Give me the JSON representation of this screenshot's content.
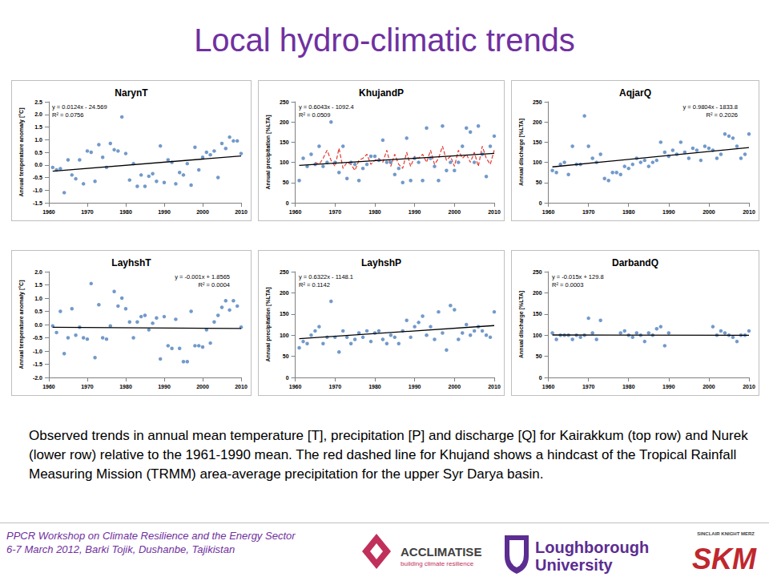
{
  "title": "Local hydro-climatic trends",
  "caption": "Observed trends in annual mean temperature [T], precipitation [P] and discharge [Q] for Kairakkum (top row) and Nurek (lower row) relative to the 1961-1990 mean. The red dashed line for Khujand shows a hindcast of the Tropical Rainfall Measuring Mission (TRMM) area-average precipitation for the upper Syr Darya basin.",
  "footer": [
    "PPCR Workshop on Climate Resilience and the Energy Sector",
    "6-7 March 2012, Barki Tojik, Dushanbe, Tajikistan"
  ],
  "logos": {
    "acclimatise": [
      "ACCLIMATISE",
      "building climate resilience"
    ],
    "loughborough": [
      "Loughborough",
      "University"
    ],
    "skm": [
      "SINCLAIR KNIGHT MERZ",
      "SKM"
    ]
  },
  "chart_data": [
    {
      "type": "scatter",
      "title": "NarynT",
      "y_label": "Annual temperature anomaly [°C]",
      "grid": false,
      "x": [
        1961,
        1962,
        1963,
        1964,
        1965,
        1966,
        1967,
        1968,
        1969,
        1970,
        1971,
        1972,
        1973,
        1974,
        1975,
        1976,
        1977,
        1978,
        1979,
        1980,
        1981,
        1982,
        1983,
        1984,
        1985,
        1986,
        1987,
        1988,
        1989,
        1990,
        1991,
        1992,
        1993,
        1994,
        1995,
        1996,
        1997,
        1998,
        1999,
        2000,
        2001,
        2002,
        2003,
        2004,
        2005,
        2006,
        2007,
        2008,
        2009,
        2010
      ],
      "xlim": [
        1960,
        2010
      ],
      "xticks": [
        1960,
        1970,
        1980,
        1990,
        2000,
        2010
      ],
      "ylim": [
        -1.5,
        2.5
      ],
      "yticks": [
        -1.5,
        {
          "value": -1,
          "label": "-1.0"
        },
        -0.5,
        {
          "value": 0,
          "label": "0.0"
        },
        0.5,
        {
          "value": 1,
          "label": "1.0"
        },
        1.5,
        {
          "value": 2,
          "label": "2.0"
        },
        2.5
      ],
      "annotations": [
        "y = 0.0124x - 24.569",
        "R² = 0.0756"
      ],
      "series": [
        {
          "type": "scatter",
          "color": "#4f81bd",
          "marker": "circle",
          "values": [
            -0.1,
            -0.2,
            -0.15,
            -1.1,
            0.2,
            -0.4,
            -0.55,
            0.2,
            -0.75,
            0.55,
            0.5,
            -0.65,
            0.8,
            0.3,
            -0.1,
            0.85,
            0.6,
            0.55,
            1.9,
            0.45,
            -0.6,
            0.05,
            -0.85,
            -0.4,
            -0.85,
            -0.45,
            -0.35,
            -0.65,
            0.75,
            -0.7,
            0.2,
            0.1,
            -0.75,
            -0.3,
            -0.4,
            0.05,
            -0.8,
            0.7,
            -0.2,
            0.3,
            0.5,
            0.4,
            0.55,
            -0.5,
            0.85,
            0.65,
            1.1,
            0.95,
            0.95,
            0.45
          ]
        },
        {
          "type": "line",
          "color": "#000000",
          "line_style": "solid",
          "x": [
            1961,
            2010
          ],
          "values": [
            -0.253,
            0.355
          ]
        }
      ]
    },
    {
      "type": "scatter",
      "title": "KhujandP",
      "y_label": "Annual precipitation [%LTA]",
      "grid": false,
      "x": [
        1961,
        1962,
        1963,
        1964,
        1965,
        1966,
        1967,
        1968,
        1969,
        1970,
        1971,
        1972,
        1973,
        1974,
        1975,
        1976,
        1977,
        1978,
        1979,
        1980,
        1981,
        1982,
        1983,
        1984,
        1985,
        1986,
        1987,
        1988,
        1989,
        1990,
        1991,
        1992,
        1993,
        1994,
        1995,
        1996,
        1997,
        1998,
        1999,
        2000,
        2001,
        2002,
        2003,
        2004,
        2005,
        2006,
        2007,
        2008,
        2009,
        2010
      ],
      "xlim": [
        1960,
        2010
      ],
      "xticks": [
        1960,
        1970,
        1980,
        1990,
        2000,
        2010
      ],
      "ylim": [
        0,
        250
      ],
      "yticks": [
        0,
        50,
        100,
        150,
        200,
        250
      ],
      "annotations": [
        "y = 0.6043x - 1092.4",
        "R² = 0.0509"
      ],
      "series": [
        {
          "type": "line",
          "color": "#e03c31",
          "line_style": "dashed",
          "x": [
            1965,
            1966,
            1967,
            1968,
            1969,
            1970,
            1971,
            1972,
            1973,
            1974,
            1975,
            1976,
            1977,
            1978,
            1979,
            1980,
            1981,
            1982,
            1983,
            1984,
            1985,
            1986,
            1987,
            1988,
            1989,
            1990,
            1991,
            1992,
            1993,
            1994,
            1995,
            1996,
            1997,
            1998,
            1999,
            2000,
            2001,
            2002,
            2003,
            2004,
            2005,
            2006,
            2007,
            2008,
            2009,
            2010
          ],
          "values": [
            100,
            95,
            110,
            130,
            105,
            90,
            135,
            85,
            100,
            95,
            80,
            105,
            110,
            120,
            95,
            105,
            110,
            100,
            130,
            90,
            120,
            95,
            85,
            125,
            90,
            115,
            110,
            120,
            100,
            130,
            95,
            110,
            140,
            105,
            115,
            90,
            130,
            110,
            120,
            100,
            125,
            90,
            140,
            110,
            95,
            130
          ]
        },
        {
          "type": "scatter",
          "color": "#4f81bd",
          "marker": "circle",
          "values": [
            55,
            110,
            90,
            120,
            95,
            140,
            90,
            100,
            200,
            100,
            75,
            140,
            60,
            100,
            95,
            55,
            85,
            95,
            115,
            115,
            105,
            155,
            100,
            100,
            70,
            85,
            50,
            160,
            55,
            110,
            100,
            55,
            185,
            110,
            90,
            55,
            190,
            80,
            100,
            80,
            100,
            140,
            185,
            175,
            100,
            190,
            120,
            65,
            140,
            165
          ]
        },
        {
          "type": "line",
          "color": "#000000",
          "line_style": "solid",
          "x": [
            1961,
            2010
          ],
          "values": [
            92.6,
            122.2
          ]
        }
      ]
    },
    {
      "type": "scatter",
      "title": "AqjarQ",
      "y_label": "Annual discharge [%LTA]",
      "grid": false,
      "x": [
        1961,
        1962,
        1963,
        1964,
        1965,
        1966,
        1967,
        1968,
        1969,
        1970,
        1971,
        1972,
        1973,
        1974,
        1975,
        1976,
        1977,
        1978,
        1979,
        1980,
        1981,
        1982,
        1983,
        1984,
        1985,
        1986,
        1987,
        1988,
        1989,
        1990,
        1991,
        1992,
        1993,
        1994,
        1995,
        1996,
        1997,
        1998,
        1999,
        2000,
        2001,
        2002,
        2003,
        2004,
        2005,
        2006,
        2007,
        2008,
        2009,
        2010
      ],
      "xlim": [
        1960,
        2010
      ],
      "xticks": [
        1960,
        1970,
        1980,
        1990,
        2000,
        2010
      ],
      "ylim": [
        0,
        250
      ],
      "yticks": [
        0,
        50,
        100,
        150,
        200,
        250
      ],
      "annotations": [
        "y = 0.9804x - 1833.8",
        "R² = 0.2026"
      ],
      "series": [
        {
          "type": "scatter",
          "color": "#4f81bd",
          "marker": "circle",
          "values": [
            80,
            75,
            95,
            100,
            70,
            140,
            95,
            95,
            215,
            140,
            110,
            100,
            120,
            60,
            55,
            75,
            75,
            70,
            90,
            85,
            95,
            110,
            100,
            105,
            90,
            100,
            105,
            150,
            125,
            115,
            130,
            120,
            150,
            125,
            110,
            135,
            130,
            105,
            140,
            135,
            130,
            110,
            120,
            170,
            165,
            160,
            140,
            110,
            120,
            170
          ]
        },
        {
          "type": "line",
          "color": "#000000",
          "line_style": "solid",
          "x": [
            1961,
            2010
          ],
          "values": [
            88.8,
            136.8
          ]
        }
      ]
    },
    {
      "type": "scatter",
      "title": "LayhshT",
      "y_label": "Annual temperature anomaly [°C]",
      "grid": false,
      "x": [
        1961,
        1962,
        1963,
        1964,
        1965,
        1966,
        1967,
        1968,
        1969,
        1970,
        1971,
        1972,
        1973,
        1974,
        1975,
        1976,
        1977,
        1978,
        1979,
        1980,
        1981,
        1982,
        1983,
        1984,
        1985,
        1986,
        1987,
        1988,
        1989,
        1990,
        1991,
        1992,
        1993,
        1994,
        1995,
        1996,
        1997,
        1998,
        1999,
        2000,
        2001,
        2002,
        2003,
        2004,
        2005,
        2006,
        2007,
        2008,
        2009,
        2010
      ],
      "xlim": [
        1960,
        2010
      ],
      "xticks": [
        1960,
        1970,
        1980,
        1990,
        2000,
        2010
      ],
      "ylim": [
        -2,
        2
      ],
      "yticks": [
        {
          "value": -2,
          "label": "-2.0"
        },
        -1.5,
        {
          "value": -1,
          "label": "-1.0"
        },
        -0.5,
        {
          "value": 0,
          "label": "0.0"
        },
        0.5,
        {
          "value": 1,
          "label": "1.0"
        },
        1.5,
        {
          "value": 2,
          "label": "2.0"
        }
      ],
      "annotations": [
        "y = -0.001x + 1.8565",
        "R² = 0.0004"
      ],
      "series": [
        {
          "type": "scatter",
          "color": "#4f81bd",
          "marker": "circle",
          "values": [
            -0.05,
            -0.3,
            0.5,
            -1.1,
            -0.5,
            0.6,
            -0.4,
            -0.1,
            -0.5,
            -0.55,
            1.55,
            -1.25,
            0.75,
            -0.5,
            -0.55,
            -0.05,
            1.25,
            0.7,
            1.0,
            0.6,
            0.1,
            -0.5,
            0.1,
            0.3,
            0.35,
            -0.2,
            0.05,
            0.25,
            -1.3,
            0.3,
            -0.8,
            -0.9,
            0.2,
            -0.9,
            -1.4,
            -1.4,
            0.5,
            -0.8,
            -0.8,
            -0.85,
            -0.2,
            -0.7,
            0.1,
            0.35,
            0.65,
            0.9,
            0.55,
            0.9,
            0.7,
            -0.1
          ]
        },
        {
          "type": "line",
          "color": "#000000",
          "line_style": "solid",
          "x": [
            1961,
            2010
          ],
          "values": [
            -0.1,
            -0.15
          ]
        }
      ]
    },
    {
      "type": "scatter",
      "title": "LayhshP",
      "y_label": "Annual precipitation [%LTA]",
      "grid": false,
      "x": [
        1961,
        1962,
        1963,
        1964,
        1965,
        1966,
        1967,
        1968,
        1969,
        1970,
        1971,
        1972,
        1973,
        1974,
        1975,
        1976,
        1977,
        1978,
        1979,
        1980,
        1981,
        1982,
        1983,
        1984,
        1985,
        1986,
        1987,
        1988,
        1989,
        1990,
        1991,
        1992,
        1993,
        1994,
        1995,
        1996,
        1997,
        1998,
        1999,
        2000,
        2001,
        2002,
        2003,
        2004,
        2005,
        2006,
        2007,
        2008,
        2009,
        2010
      ],
      "xlim": [
        1960,
        2010
      ],
      "xticks": [
        1960,
        1970,
        1980,
        1990,
        2000,
        2010
      ],
      "ylim": [
        0,
        250
      ],
      "yticks": [
        0,
        50,
        100,
        150,
        200,
        250
      ],
      "annotations": [
        "y = 0.6322x - 1148.1",
        "R² = 0.1142"
      ],
      "series": [
        {
          "type": "scatter",
          "color": "#4f81bd",
          "marker": "circle",
          "values": [
            70,
            85,
            80,
            100,
            110,
            120,
            80,
            95,
            180,
            95,
            60,
            110,
            95,
            80,
            90,
            105,
            95,
            110,
            85,
            105,
            110,
            90,
            80,
            100,
            95,
            80,
            110,
            135,
            95,
            120,
            130,
            145,
            100,
            120,
            90,
            155,
            105,
            65,
            170,
            160,
            90,
            105,
            125,
            100,
            110,
            120,
            110,
            100,
            95,
            155
          ]
        },
        {
          "type": "line",
          "color": "#000000",
          "line_style": "solid",
          "x": [
            1961,
            2010
          ],
          "values": [
            91.6,
            122.6
          ]
        }
      ]
    },
    {
      "type": "scatter",
      "title": "DarbandQ",
      "y_label": "Annual discharge [%LTA]",
      "grid": false,
      "x": [
        1961,
        1962,
        1963,
        1964,
        1965,
        1966,
        1967,
        1968,
        1969,
        1970,
        1971,
        1972,
        1973,
        1974,
        1975,
        1976,
        1977,
        1978,
        1979,
        1980,
        1981,
        1982,
        1983,
        1984,
        1985,
        1986,
        1987,
        1988,
        1989,
        1990,
        1991,
        1992,
        1993,
        1994,
        1995,
        1996,
        1997,
        1998,
        1999,
        2000,
        2001,
        2002,
        2003,
        2004,
        2005,
        2006,
        2007,
        2008,
        2009,
        2010
      ],
      "xlim": [
        1960,
        2010
      ],
      "xticks": [
        1960,
        1970,
        1980,
        1990,
        2000,
        2010
      ],
      "ylim": [
        0,
        250
      ],
      "yticks": [
        0,
        50,
        100,
        150,
        200,
        250
      ],
      "annotations": [
        "y = -0.015x + 129.8",
        "R² = 0.0003"
      ],
      "series": [
        {
          "type": "scatter",
          "color": "#4f81bd",
          "marker": "circle",
          "values": [
            105,
            90,
            100,
            100,
            100,
            90,
            100,
            95,
            100,
            140,
            105,
            90,
            135,
            null,
            null,
            null,
            null,
            105,
            110,
            100,
            95,
            105,
            100,
            85,
            105,
            100,
            115,
            120,
            75,
            105,
            null,
            null,
            null,
            null,
            null,
            null,
            null,
            null,
            null,
            null,
            120,
            100,
            110,
            105,
            100,
            95,
            85,
            100,
            100,
            110
          ]
        },
        {
          "type": "line",
          "color": "#000000",
          "line_style": "solid",
          "x": [
            1961,
            2010
          ],
          "values": [
            100.4,
            99.65
          ]
        }
      ]
    }
  ]
}
